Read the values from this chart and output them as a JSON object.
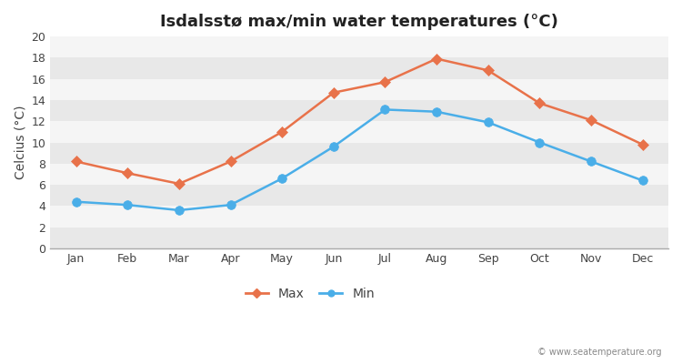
{
  "title": "Isdalsstø max/min water temperatures (°C)",
  "ylabel": "Celcius (°C)",
  "months": [
    "Jan",
    "Feb",
    "Mar",
    "Apr",
    "May",
    "Jun",
    "Jul",
    "Aug",
    "Sep",
    "Oct",
    "Nov",
    "Dec"
  ],
  "max_values": [
    8.2,
    7.1,
    6.1,
    8.2,
    11.0,
    14.7,
    15.7,
    17.9,
    16.8,
    13.7,
    12.1,
    9.8
  ],
  "min_values": [
    4.4,
    4.1,
    3.6,
    4.1,
    6.6,
    9.6,
    13.1,
    12.9,
    11.9,
    10.0,
    8.2,
    6.4
  ],
  "max_color": "#e8724a",
  "min_color": "#4aaee8",
  "stripe_colors": [
    "#e8e8e8",
    "#f5f5f5"
  ],
  "fig_bg": "#ffffff",
  "ylim": [
    0,
    20
  ],
  "yticks": [
    0,
    2,
    4,
    6,
    8,
    10,
    12,
    14,
    16,
    18,
    20
  ],
  "legend_labels": [
    "Max",
    "Min"
  ],
  "watermark": "© www.seatemperature.org",
  "title_fontsize": 13,
  "label_fontsize": 10,
  "tick_fontsize": 9,
  "watermark_fontsize": 7
}
